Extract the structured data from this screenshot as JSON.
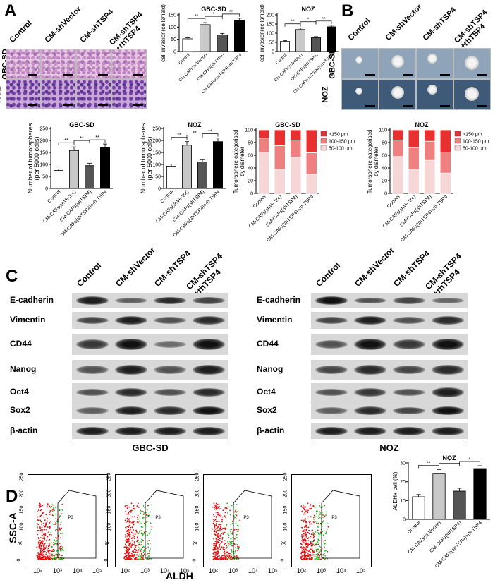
{
  "panels": {
    "A": "A",
    "B": "B",
    "C": "C",
    "D": "D"
  },
  "panelA": {
    "columns": [
      "Control",
      "CM-shVector",
      "CM-shTSP4",
      "CM-shTSP4\n+rhTSP4"
    ],
    "rows": [
      "GBC-SD",
      "NOZ"
    ]
  },
  "panelB": {
    "columns": [
      "Control",
      "CM-shVector",
      "CM-shTSP4",
      "CM-shTSP4\n+rhTSP4"
    ],
    "rows": [
      "GBC-SD",
      "NOZ"
    ]
  },
  "bar_categories": [
    "Control",
    "CM-CAFs(shVector)",
    "CM-CAFs(shTSP4)",
    "CM-CAFs(shTSP4)+rh-TSP4"
  ],
  "bar_colors": [
    "#ffffff",
    "#c8c8c8",
    "#555555",
    "#000000"
  ],
  "stack_colors": [
    "#f6d6d6",
    "#ef8080",
    "#e83030"
  ],
  "chart_data": [
    {
      "id": "inv-gbc",
      "type": "bar",
      "title": "GBC-SD",
      "ylabel": "cell invasion(cells/field)",
      "ylim": [
        0,
        150
      ],
      "yticks": [
        0,
        50,
        100,
        150
      ],
      "categories": [
        "Control",
        "CM-CAFs(shVector)",
        "CM-CAFs(shTSP4)",
        "CM-CAFs(shTSP4)+rh-TSP4"
      ],
      "values": [
        52,
        110,
        68,
        128
      ],
      "errors": [
        4,
        8,
        6,
        8
      ],
      "sig": [
        {
          "a": 0,
          "b": 1,
          "label": "**"
        },
        {
          "a": 1,
          "b": 2,
          "label": "*"
        },
        {
          "a": 2,
          "b": 3,
          "label": "**"
        }
      ]
    },
    {
      "id": "inv-noz",
      "type": "bar",
      "title": "NOZ",
      "ylabel": "cell invasion(cells/field)",
      "ylim": [
        0,
        200
      ],
      "yticks": [
        0,
        50,
        100,
        150,
        200
      ],
      "categories": [
        "Control",
        "CM-CAFs(shVector)",
        "CM-CAFs(shTSP4)",
        "CM-CAFs(shTSP4)+rh-TSP4"
      ],
      "values": [
        55,
        120,
        75,
        135
      ],
      "errors": [
        4,
        8,
        6,
        8
      ],
      "sig": [
        {
          "a": 0,
          "b": 1,
          "label": "**"
        },
        {
          "a": 1,
          "b": 2,
          "label": "*"
        },
        {
          "a": 2,
          "b": 3,
          "label": "**"
        }
      ]
    },
    {
      "id": "tum-gbc",
      "type": "bar",
      "title": "GBC-SD",
      "ylabel": "Number of tumorspheres\n(per 5000 cells)",
      "ylim": [
        0,
        250
      ],
      "yticks": [
        0,
        50,
        100,
        150,
        200,
        250
      ],
      "categories": [
        "Control",
        "CM-CAFs(shVector)",
        "CM-CAFs(shTSP4)",
        "CM-CAFs(shTSP4)+rh-TSP4"
      ],
      "values": [
        75,
        158,
        95,
        170
      ],
      "errors": [
        6,
        15,
        10,
        15
      ],
      "sig": [
        {
          "a": 0,
          "b": 1,
          "label": "**"
        },
        {
          "a": 1,
          "b": 2,
          "label": "**"
        },
        {
          "a": 2,
          "b": 3,
          "label": "**"
        }
      ]
    },
    {
      "id": "tum-noz",
      "type": "bar",
      "title": "NOZ",
      "ylabel": "Number of tumorspheres\n(per 5000 cells)",
      "ylim": [
        0,
        250
      ],
      "yticks": [
        0,
        50,
        100,
        150,
        200,
        250
      ],
      "categories": [
        "Control",
        "CM-CAFs(shVector)",
        "CM-CAFs(shTSP4)",
        "CM-CAFs(shTSP4)+rh-TSP4"
      ],
      "values": [
        93,
        180,
        110,
        195
      ],
      "errors": [
        8,
        15,
        10,
        15
      ],
      "sig": [
        {
          "a": 0,
          "b": 1,
          "label": "**"
        },
        {
          "a": 1,
          "b": 2,
          "label": "**"
        },
        {
          "a": 2,
          "b": 3,
          "label": "**"
        }
      ]
    },
    {
      "id": "stack-gbc",
      "type": "bar",
      "stacked": true,
      "title": "GBC-SD",
      "ylabel": "Tumorsphere  categorised\nby diameter",
      "ylim": [
        0,
        100
      ],
      "yticks": [
        0,
        20,
        40,
        60,
        80,
        100
      ],
      "categories": [
        "Control",
        "CM-CAFs(shVector)",
        "CM-CAFs(shTSP4)",
        "CM-CAFs(shTSP4)+rh-TSP4"
      ],
      "series": [
        {
          "name": "50-100 μm",
          "values": [
            65,
            38,
            57,
            30
          ]
        },
        {
          "name": "100-150 μm",
          "values": [
            22,
            37,
            27,
            34
          ]
        },
        {
          "name": ">150 μm",
          "values": [
            13,
            25,
            16,
            36
          ]
        }
      ],
      "legend": "right"
    },
    {
      "id": "stack-noz",
      "type": "bar",
      "stacked": true,
      "title": "NOZ",
      "ylabel": "Tumorsphere  categorised\nby diameter",
      "ylim": [
        0,
        100
      ],
      "yticks": [
        0,
        20,
        40,
        60,
        80,
        100
      ],
      "categories": [
        "Control",
        "CM-CAFs(shVector)",
        "CM-CAFs(shTSP4)",
        "CM-CAFs(shTSP4)+rh-TSP4"
      ],
      "series": [
        {
          "name": "50-100 μm",
          "values": [
            58,
            37,
            52,
            32
          ]
        },
        {
          "name": "100-150 μm",
          "values": [
            26,
            35,
            30,
            33
          ]
        },
        {
          "name": ">150 μm",
          "values": [
            16,
            28,
            18,
            35
          ]
        }
      ],
      "legend": "right"
    },
    {
      "id": "aldh-noz",
      "type": "bar",
      "title": "NOZ",
      "ylabel": "ALDH+ cell (%)",
      "ylim": [
        0,
        30
      ],
      "yticks": [
        0,
        10,
        20,
        30
      ],
      "categories": [
        "Control",
        "CM-CAFs(shVector)",
        "CM-CAFs(shTSP4)",
        "CM-CAFs(shTSP4)+rh-TSP4"
      ],
      "values": [
        12,
        24.5,
        15,
        27
      ],
      "errors": [
        1.2,
        2,
        1.5,
        1.5
      ],
      "sig": [
        {
          "a": 0,
          "b": 1,
          "label": "**"
        },
        {
          "a": 1,
          "b": 2,
          "label": "*"
        },
        {
          "a": 2,
          "b": 3,
          "label": "*"
        }
      ]
    }
  ],
  "panelC": {
    "columns": [
      "Control",
      "CM-shVector",
      "CM-shTSP4",
      "CM-shTSP4\n+rhTSP4"
    ],
    "markers": [
      "E-cadherin",
      "Vimentin",
      "CD44",
      "Nanog",
      "Oct4",
      "Sox2",
      "β-actin"
    ],
    "groups": [
      "GBC-SD",
      "NOZ"
    ]
  },
  "panelD": {
    "ylabel": "SSC-A",
    "xlabel": "ALDH",
    "gate": "P3",
    "yticks": [
      "0",
      "50",
      "100",
      "150",
      "200",
      "250"
    ],
    "xticks": [
      "10²",
      "10³",
      "10⁴",
      "10⁵"
    ]
  }
}
